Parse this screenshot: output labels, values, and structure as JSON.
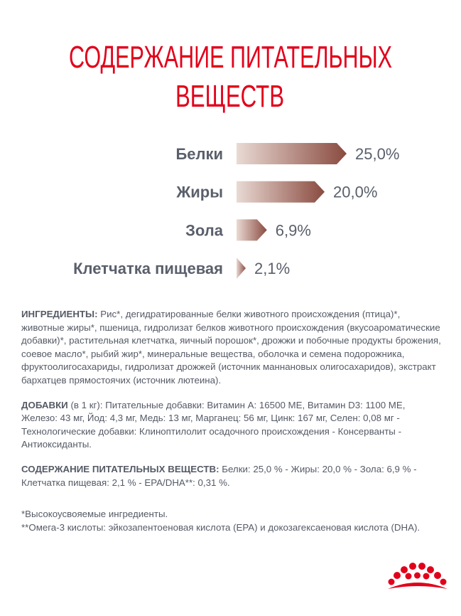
{
  "chart_data": {
    "type": "bar",
    "orientation": "horizontal",
    "title": [
      "СОДЕРЖАНИЕ ПИТАТЕЛЬНЫХ",
      "ВЕЩЕСТВ"
    ],
    "categories": [
      "Белки",
      "Жиры",
      "Зола",
      "Клетчатка пищевая"
    ],
    "values": [
      25.0,
      20.0,
      6.9,
      2.1
    ],
    "value_labels": [
      "25,0%",
      "20,0%",
      "6,9%",
      "2,1%"
    ],
    "color": [
      "#e9dad4",
      "#8a4b40"
    ]
  },
  "document": {
    "ingredients": {
      "label": "ИНГРЕДИЕНТЫ:",
      "text": "Рис*, дегидратированные белки животного происхождения (птица)*, животные жиры*, пшеница, гидролизат белков животного происхождения (вкусоароматические добавки)*, растительная клетчатка, яичный порошок*, дрожжи и побочные продукты брожения, соевое масло*, рыбий жир*, минеральные вещества, оболочка и семена подорожника, фруктоолигосахариды, гидролизат дрожжей (источник маннановых олигосахаридов), экстракт бархатцев прямостоячих (источник лютеина)."
    },
    "additives": {
      "label": "ДОБАВКИ",
      "note": "(в 1 кг):",
      "text": "Питательные добавки: Витамин А: 16500 МЕ, Витамин D3: 1100 МЕ, Железо: 43 мг, Йод: 4,3 мг, Медь: 13 мг, Марганец: 56 мг, Цинк: 167 мг, Селен: 0,08 мг - Технологические добавки: Клиноптилолит осадочного происхождения - Консерванты - Антиоксиданты."
    },
    "nutrients": {
      "label": "СОДЕРЖАНИЕ ПИТАТЕЛЬНЫХ ВЕЩЕСТВ:",
      "text": "Белки: 25,0 % - Жиры: 20,0 % - Зола: 6,9 % - Клетчатка пищевая: 2,1 % - EPA/DHA**: 0,31 %."
    },
    "footnotes": [
      "*Высокоусвояемые ингредиенты.",
      "**Омега-3 кислоты: эйкозапентоеновая кислота (EPA) и докозагексаеновая кислота (DHA)."
    ]
  }
}
